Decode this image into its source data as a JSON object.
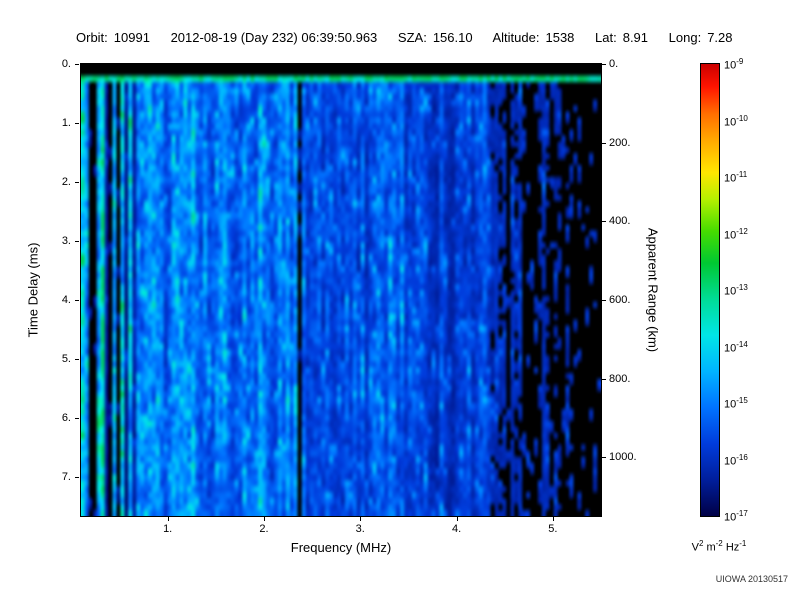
{
  "header": {
    "orbit_label": "Orbit:",
    "orbit_value": "10991",
    "datetime": "2012-08-19 (Day 232) 06:39:50.963",
    "sza_label": "SZA:",
    "sza_value": "156.10",
    "altitude_label": "Altitude:",
    "altitude_value": "1538",
    "lat_label": "Lat:",
    "lat_value": "8.91",
    "long_label": "Long:",
    "long_value": "7.28"
  },
  "chart_data": {
    "type": "heatmap",
    "title": "",
    "xlabel": "Frequency (MHz)",
    "ylabel": "Time Delay (ms)",
    "y2label": "Apparent Range (km)",
    "x_min": 0.1,
    "x_max": 5.5,
    "x_tick_values": [
      1,
      2,
      3,
      4,
      5
    ],
    "x_tick_labels": [
      "1.",
      "2.",
      "3.",
      "4.",
      "5."
    ],
    "y_min": 0,
    "y_max": 7.66,
    "y_tick_values": [
      0,
      1,
      2,
      3,
      4,
      5,
      6,
      7
    ],
    "y_tick_labels": [
      "0.",
      "1.",
      "2.",
      "3.",
      "4.",
      "5.",
      "6.",
      "7."
    ],
    "y2_tick_values_km": [
      0,
      200,
      400,
      600,
      800,
      1000
    ],
    "y2_tick_labels": [
      "0.",
      "200.",
      "400.",
      "600.",
      "800.",
      "1000."
    ],
    "range_per_ms_km": 150,
    "credit": "UIOWA 20130517",
    "description": "Radar sounder ionogram spectrogram: mostly blue noise; bright cyan vertical stripes below 0.7 MHz; brighter band 0.7-2.3 MHz; black vertical interference gap near 2.37 MHz; progressively darker with black dropouts above 4.3 MHz; black band at zero delay with bright transmit-pulse stripe near 0.25 ms.",
    "colorbar": {
      "max_label": {
        "base": "10",
        "exp": "-9"
      },
      "min_label": {
        "base": "10",
        "exp": "-17"
      },
      "tick_labels": [
        {
          "base": "10",
          "exp": "-9"
        },
        {
          "base": "10",
          "exp": "-10"
        },
        {
          "base": "10",
          "exp": "-11"
        },
        {
          "base": "10",
          "exp": "-12"
        },
        {
          "base": "10",
          "exp": "-13"
        },
        {
          "base": "10",
          "exp": "-14"
        },
        {
          "base": "10",
          "exp": "-15"
        },
        {
          "base": "10",
          "exp": "-16"
        },
        {
          "base": "10",
          "exp": "-17"
        }
      ],
      "unit_parts": [
        {
          "base": "V",
          "exp": "2"
        },
        {
          "base": "m",
          "exp": "-2"
        },
        {
          "base": "Hz",
          "exp": "-1"
        }
      ],
      "gradient_stops": [
        {
          "pos": 0.0,
          "color": "#cc0000"
        },
        {
          "pos": 0.05,
          "color": "#ff1400"
        },
        {
          "pos": 0.11,
          "color": "#ff6e00"
        },
        {
          "pos": 0.17,
          "color": "#ffaa00"
        },
        {
          "pos": 0.24,
          "color": "#ffe600"
        },
        {
          "pos": 0.3,
          "color": "#b4f000"
        },
        {
          "pos": 0.37,
          "color": "#46dc00"
        },
        {
          "pos": 0.44,
          "color": "#00c832"
        },
        {
          "pos": 0.52,
          "color": "#00dc96"
        },
        {
          "pos": 0.6,
          "color": "#00e6e6"
        },
        {
          "pos": 0.68,
          "color": "#00b4ff"
        },
        {
          "pos": 0.76,
          "color": "#0073ff"
        },
        {
          "pos": 0.84,
          "color": "#003cdc"
        },
        {
          "pos": 0.92,
          "color": "#001e9b"
        },
        {
          "pos": 1.0,
          "color": "#000046"
        }
      ]
    },
    "heatmap_model": {
      "seed": 20130517,
      "cols": 132,
      "rows": 76,
      "value_to_color_scale": 0.52,
      "black_threshold": 0.06,
      "top_black_ms": 0.18,
      "bright_stripe_ms": [
        0.18,
        0.33
      ],
      "bright_stripe_value": [
        0.78,
        1.05
      ],
      "bands": [
        {
          "f0": 0.1,
          "f1": 0.15,
          "a": 0.8,
          "stripe": 0.25
        },
        {
          "f0": 0.15,
          "f1": 0.72,
          "a": 0.5,
          "stripe": 0.95
        },
        {
          "f0": 0.72,
          "f1": 2.34,
          "a": 0.55,
          "stripe": 0.3
        },
        {
          "f0": 2.34,
          "f1": 2.41,
          "a": 0.02,
          "stripe": 0.0
        },
        {
          "f0": 2.41,
          "f1": 3.5,
          "a": 0.42,
          "stripe": 0.28
        },
        {
          "f0": 3.5,
          "f1": 4.3,
          "a": 0.34,
          "stripe": 0.28
        },
        {
          "f0": 4.3,
          "f1": 5.51,
          "a": 0.26,
          "stripe": 0.4,
          "fade_to": 0.13
        }
      ],
      "dark_lines_mhz": [
        [
          0.195,
          0.012
        ],
        [
          0.24,
          0.01
        ],
        [
          0.4,
          0.015
        ],
        [
          0.49,
          0.012
        ]
      ],
      "bright_lines_mhz": [
        [
          0.125,
          0.02,
          0.85
        ],
        [
          0.29,
          0.015,
          0.7
        ]
      ],
      "right_black_start_mhz": 4.25,
      "right_black_threshold": 0.17
    }
  }
}
